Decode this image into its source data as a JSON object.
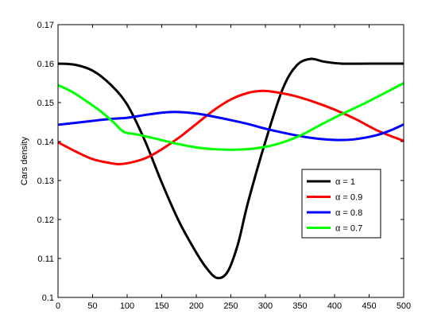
{
  "chart_data": {
    "type": "line",
    "title": "",
    "xlabel": "",
    "ylabel": "Cars density",
    "xlim": [
      0,
      500
    ],
    "ylim": [
      0.1,
      0.17
    ],
    "xticks": [
      0,
      50,
      100,
      150,
      200,
      250,
      300,
      350,
      400,
      450,
      500
    ],
    "yticks": [
      0.1,
      0.11,
      0.12,
      0.13,
      0.14,
      0.15,
      0.16,
      0.17
    ],
    "grid": false,
    "legend_position": "center-right",
    "series": [
      {
        "name": "α = 1",
        "color": "#000000",
        "points": [
          [
            0,
            0.16
          ],
          [
            25,
            0.1597
          ],
          [
            50,
            0.1582
          ],
          [
            75,
            0.1548
          ],
          [
            100,
            0.1495
          ],
          [
            125,
            0.1405
          ],
          [
            150,
            0.1295
          ],
          [
            175,
            0.1195
          ],
          [
            200,
            0.1115
          ],
          [
            215,
            0.1075
          ],
          [
            230,
            0.105
          ],
          [
            245,
            0.1065
          ],
          [
            260,
            0.1135
          ],
          [
            275,
            0.1245
          ],
          [
            300,
            0.14
          ],
          [
            325,
            0.1535
          ],
          [
            345,
            0.1595
          ],
          [
            365,
            0.1612
          ],
          [
            385,
            0.1605
          ],
          [
            410,
            0.16
          ],
          [
            450,
            0.16
          ],
          [
            500,
            0.16
          ]
        ]
      },
      {
        "name": "α = 0.9",
        "color": "#ff0000",
        "points": [
          [
            0,
            0.1398
          ],
          [
            25,
            0.1375
          ],
          [
            50,
            0.1355
          ],
          [
            75,
            0.1345
          ],
          [
            90,
            0.1342
          ],
          [
            110,
            0.1348
          ],
          [
            130,
            0.136
          ],
          [
            150,
            0.138
          ],
          [
            175,
            0.141
          ],
          [
            200,
            0.1445
          ],
          [
            225,
            0.148
          ],
          [
            250,
            0.1508
          ],
          [
            275,
            0.1525
          ],
          [
            295,
            0.153
          ],
          [
            310,
            0.1528
          ],
          [
            340,
            0.1518
          ],
          [
            370,
            0.1502
          ],
          [
            400,
            0.1482
          ],
          [
            430,
            0.1458
          ],
          [
            460,
            0.143
          ],
          [
            480,
            0.1415
          ],
          [
            500,
            0.1402
          ]
        ]
      },
      {
        "name": "α = 0.8",
        "color": "#0000ff",
        "points": [
          [
            0,
            0.1443
          ],
          [
            25,
            0.1448
          ],
          [
            50,
            0.1453
          ],
          [
            75,
            0.1458
          ],
          [
            100,
            0.1461
          ],
          [
            125,
            0.1468
          ],
          [
            150,
            0.1474
          ],
          [
            170,
            0.1476
          ],
          [
            200,
            0.1472
          ],
          [
            225,
            0.1464
          ],
          [
            250,
            0.1455
          ],
          [
            275,
            0.1445
          ],
          [
            300,
            0.1433
          ],
          [
            330,
            0.1421
          ],
          [
            360,
            0.1411
          ],
          [
            390,
            0.1405
          ],
          [
            410,
            0.1404
          ],
          [
            430,
            0.1406
          ],
          [
            460,
            0.1416
          ],
          [
            480,
            0.1428
          ],
          [
            500,
            0.1444
          ]
        ]
      },
      {
        "name": "α = 0.7",
        "color": "#00ff00",
        "points": [
          [
            0,
            0.1545
          ],
          [
            20,
            0.1528
          ],
          [
            40,
            0.1505
          ],
          [
            60,
            0.148
          ],
          [
            80,
            0.145
          ],
          [
            95,
            0.1425
          ],
          [
            115,
            0.1418
          ],
          [
            140,
            0.1408
          ],
          [
            170,
            0.1395
          ],
          [
            200,
            0.1385
          ],
          [
            220,
            0.1381
          ],
          [
            245,
            0.1379
          ],
          [
            270,
            0.138
          ],
          [
            295,
            0.1385
          ],
          [
            320,
            0.1395
          ],
          [
            350,
            0.1415
          ],
          [
            380,
            0.1443
          ],
          [
            410,
            0.147
          ],
          [
            440,
            0.1495
          ],
          [
            470,
            0.1522
          ],
          [
            500,
            0.155
          ]
        ]
      }
    ]
  }
}
